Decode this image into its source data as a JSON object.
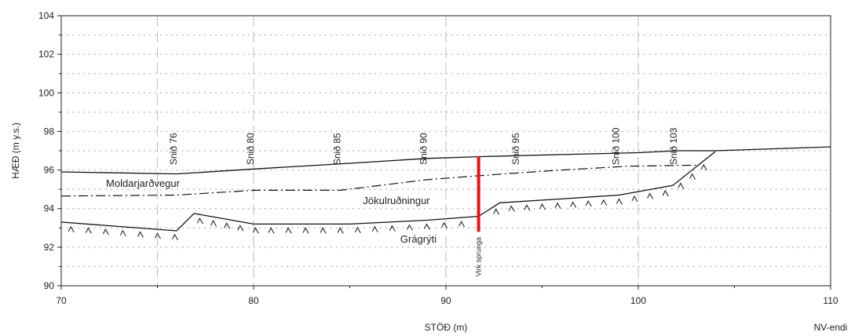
{
  "x_axis": {
    "title": "STÖÐ (m)",
    "end_label": "NV-endi",
    "range": [
      70,
      110
    ],
    "ticks": [
      70,
      80,
      90,
      100,
      110
    ],
    "major_gridlines": [
      75,
      80,
      90,
      100
    ],
    "tick_labels": [
      "70",
      "80",
      "90",
      "100",
      "110"
    ]
  },
  "y_axis": {
    "title": "HÆÐ (m y.s.)",
    "range": [
      90,
      104
    ],
    "ticks": [
      90,
      92,
      94,
      96,
      98,
      100,
      102,
      104
    ],
    "tick_labels": [
      "90",
      "92",
      "94",
      "96",
      "98",
      "100",
      "102",
      "104"
    ],
    "minor_grid_step": 1
  },
  "sections": [
    {
      "label": "Snið 76",
      "x": 76
    },
    {
      "label": "Snið 80",
      "x": 80
    },
    {
      "label": "Snið 85",
      "x": 84.5
    },
    {
      "label": "Snið 90",
      "x": 89
    },
    {
      "label": "Snið 95",
      "x": 93.8
    },
    {
      "label": "Snið 100",
      "x": 99
    },
    {
      "label": "Snið 103",
      "x": 102
    }
  ],
  "layers": {
    "moldarjardvegur": "Moldarjarðvegur",
    "jokulrudningur": "Jökulruðningur",
    "gragryti": "Grágrýti"
  },
  "fault": {
    "label": "Virk sprunga",
    "x": 91.7,
    "y_top": 96.7,
    "y_bottom": 92.8,
    "color": "#ee1111"
  },
  "profiles": {
    "surface": [
      [
        70,
        95.9
      ],
      [
        76,
        95.8
      ],
      [
        80,
        96.05
      ],
      [
        85,
        96.35
      ],
      [
        89,
        96.6
      ],
      [
        92,
        96.7
      ],
      [
        96,
        96.8
      ],
      [
        100,
        96.9
      ],
      [
        102,
        97.0
      ],
      [
        104,
        97.0
      ],
      [
        110,
        97.2
      ]
    ],
    "soil_base": [
      [
        70,
        94.65
      ],
      [
        76,
        94.7
      ],
      [
        80,
        94.95
      ],
      [
        84.5,
        94.95
      ],
      [
        89,
        95.5
      ],
      [
        93,
        95.8
      ],
      [
        96,
        96.0
      ],
      [
        99.5,
        96.2
      ],
      [
        103,
        96.25
      ]
    ],
    "bedrock": [
      [
        70,
        93.3
      ],
      [
        76,
        92.85
      ],
      [
        76.9,
        93.75
      ],
      [
        80,
        93.2
      ],
      [
        85,
        93.2
      ],
      [
        89,
        93.4
      ],
      [
        91.7,
        93.6
      ],
      [
        92.8,
        94.3
      ],
      [
        96,
        94.5
      ],
      [
        99,
        94.7
      ],
      [
        101.8,
        95.2
      ],
      [
        104,
        96.95
      ]
    ]
  },
  "bedrock_hatch_x": [
    70.5,
    71.4,
    72.3,
    73.2,
    74.1,
    75.0,
    75.9,
    77.2,
    77.9,
    78.6,
    79.3,
    80.1,
    80.9,
    81.8,
    82.7,
    83.6,
    84.5,
    85.4,
    86.3,
    87.2,
    88.1,
    89.0,
    89.9,
    90.8,
    92.6,
    93.4,
    94.2,
    95.0,
    95.8,
    96.6,
    97.4,
    98.2,
    99.0,
    99.8,
    100.6,
    101.4,
    102.2,
    102.8,
    103.4
  ]
}
